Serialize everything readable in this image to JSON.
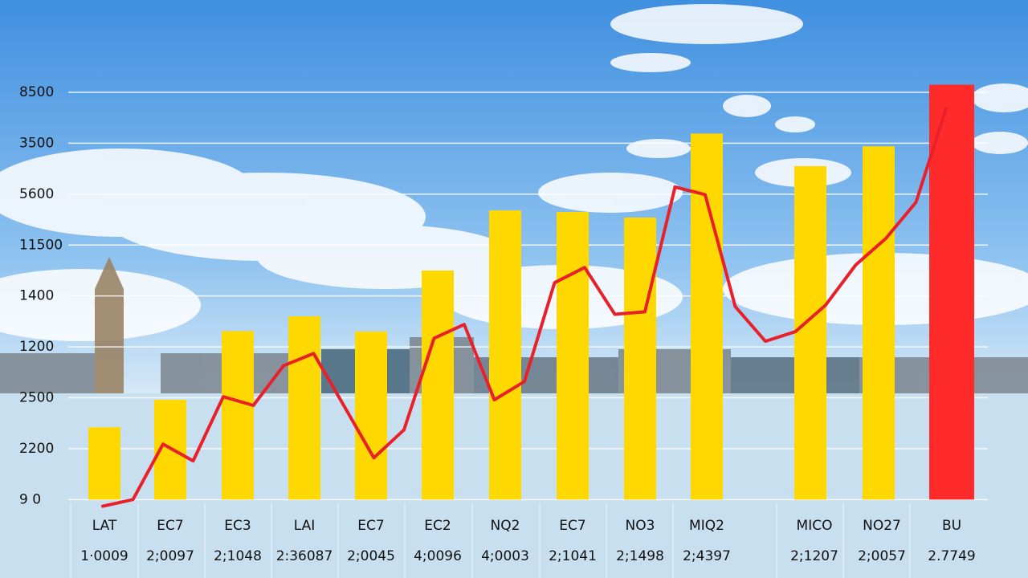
{
  "chart_data": {
    "type": "bar",
    "categories": [
      "LAT",
      "EC7",
      "EC3",
      "LAI",
      "EC7",
      "EC2",
      "NQ2",
      "EC7",
      "NO3",
      "MIQ2",
      "MICO",
      "NO27",
      "BU"
    ],
    "category_sublabels": [
      "1·0009",
      "2;0097",
      "2;1048",
      "2:36087",
      "2;0045",
      "4;0096",
      "4;0003",
      "2;1041",
      "2;1498",
      "2;4397",
      "2;1207",
      "2;0057",
      "2.7749"
    ],
    "values": [
      1.42,
      1.96,
      3.31,
      3.6,
      3.3,
      4.5,
      5.68,
      5.65,
      5.54,
      7.19,
      6.55,
      6.94,
      8.15
    ],
    "colors": [
      "#ffd800",
      "#ffd800",
      "#ffd800",
      "#ffd800",
      "#ffd800",
      "#ffd800",
      "#ffd800",
      "#ffd800",
      "#ffd800",
      "#ffd800",
      "#ffd800",
      "#ffd800",
      "#ff2b2b"
    ],
    "line": {
      "color": "#e8202a",
      "values": [
        -0.13,
        0,
        1.09,
        0.76,
        2.02,
        1.85,
        2.63,
        2.87,
        1.85,
        0.82,
        1.37,
        3.17,
        3.44,
        1.96,
        2.32,
        4.26,
        4.56,
        3.64,
        3.69,
        6.14,
        5.99,
        3.79,
        3.11,
        3.3,
        3.82,
        4.61,
        5.13,
        5.84,
        7.68
      ]
    },
    "ylim": [
      -0.2,
      8.3
    ],
    "yticks": [
      {
        "value": 0,
        "label": "9 0"
      },
      {
        "value": 1,
        "label": "2200"
      },
      {
        "value": 2,
        "label": "2500"
      },
      {
        "value": 3,
        "label": "1200"
      },
      {
        "value": 4,
        "label": "1400"
      },
      {
        "value": 5,
        "label": "11500"
      },
      {
        "value": 6,
        "label": "5600"
      },
      {
        "value": 7,
        "label": "3500"
      },
      {
        "value": 8,
        "label": "8500"
      }
    ],
    "grid": true
  }
}
